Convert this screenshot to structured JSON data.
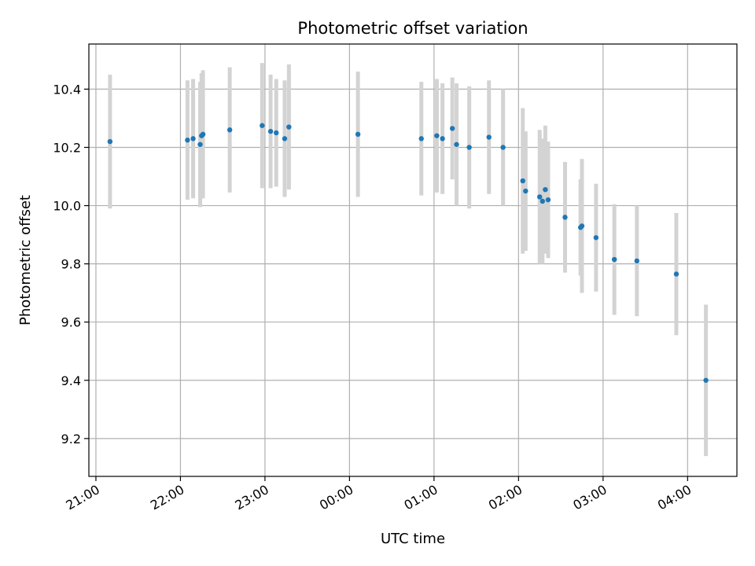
{
  "chart_data": {
    "type": "scatter",
    "title": "Photometric offset variation",
    "xlabel": "UTC time",
    "ylabel": "Photometric offset",
    "x_axis_kind": "time",
    "xlim": [
      "20:55",
      "04:35"
    ],
    "ylim": [
      9.07,
      10.555
    ],
    "x_ticks": [
      "21:00",
      "22:00",
      "23:00",
      "00:00",
      "01:00",
      "02:00",
      "03:00",
      "04:00"
    ],
    "y_ticks": [
      9.2,
      9.4,
      9.6,
      9.8,
      10.0,
      10.2,
      10.4
    ],
    "y_tick_labels": [
      "9.2",
      "9.4",
      "9.6",
      "9.8",
      "10.0",
      "10.2",
      "10.4"
    ],
    "grid": true,
    "legend": "none",
    "colors": {
      "point": "#1f77b4",
      "errorbar": "#d3d3d3",
      "grid": "#b0b0b0"
    },
    "points": [
      {
        "x": "21:10",
        "y": 10.22,
        "err": 0.23
      },
      {
        "x": "22:05",
        "y": 10.225,
        "err": 0.205
      },
      {
        "x": "22:09",
        "y": 10.23,
        "err": 0.205
      },
      {
        "x": "22:14",
        "y": 10.21,
        "err": 0.215
      },
      {
        "x": "22:15",
        "y": 10.24,
        "err": 0.215
      },
      {
        "x": "22:16",
        "y": 10.245,
        "err": 0.22
      },
      {
        "x": "22:35",
        "y": 10.26,
        "err": 0.215
      },
      {
        "x": "22:58",
        "y": 10.275,
        "err": 0.215
      },
      {
        "x": "23:04",
        "y": 10.255,
        "err": 0.195
      },
      {
        "x": "23:08",
        "y": 10.25,
        "err": 0.185
      },
      {
        "x": "23:14",
        "y": 10.23,
        "err": 0.2
      },
      {
        "x": "23:17",
        "y": 10.27,
        "err": 0.215
      },
      {
        "x": "00:06",
        "y": 10.245,
        "err": 0.215
      },
      {
        "x": "00:51",
        "y": 10.23,
        "err": 0.195
      },
      {
        "x": "01:02",
        "y": 10.24,
        "err": 0.195
      },
      {
        "x": "01:06",
        "y": 10.23,
        "err": 0.19
      },
      {
        "x": "01:13",
        "y": 10.265,
        "err": 0.175
      },
      {
        "x": "01:16",
        "y": 10.21,
        "err": 0.21
      },
      {
        "x": "01:25",
        "y": 10.2,
        "err": 0.21
      },
      {
        "x": "01:39",
        "y": 10.235,
        "err": 0.195
      },
      {
        "x": "01:49",
        "y": 10.2,
        "err": 0.2
      },
      {
        "x": "02:03",
        "y": 10.085,
        "err": 0.25
      },
      {
        "x": "02:05",
        "y": 10.05,
        "err": 0.205
      },
      {
        "x": "02:15",
        "y": 10.03,
        "err": 0.23
      },
      {
        "x": "02:17",
        "y": 10.015,
        "err": 0.215
      },
      {
        "x": "02:19",
        "y": 10.055,
        "err": 0.22
      },
      {
        "x": "02:21",
        "y": 10.02,
        "err": 0.2
      },
      {
        "x": "02:33",
        "y": 9.96,
        "err": 0.19
      },
      {
        "x": "02:44",
        "y": 9.925,
        "err": 0.165
      },
      {
        "x": "02:45",
        "y": 9.93,
        "err": 0.23
      },
      {
        "x": "02:55",
        "y": 9.89,
        "err": 0.185
      },
      {
        "x": "03:08",
        "y": 9.815,
        "err": 0.19
      },
      {
        "x": "03:24",
        "y": 9.81,
        "err": 0.19
      },
      {
        "x": "03:52",
        "y": 9.765,
        "err": 0.21
      },
      {
        "x": "04:13",
        "y": 9.4,
        "err": 0.26
      }
    ]
  }
}
